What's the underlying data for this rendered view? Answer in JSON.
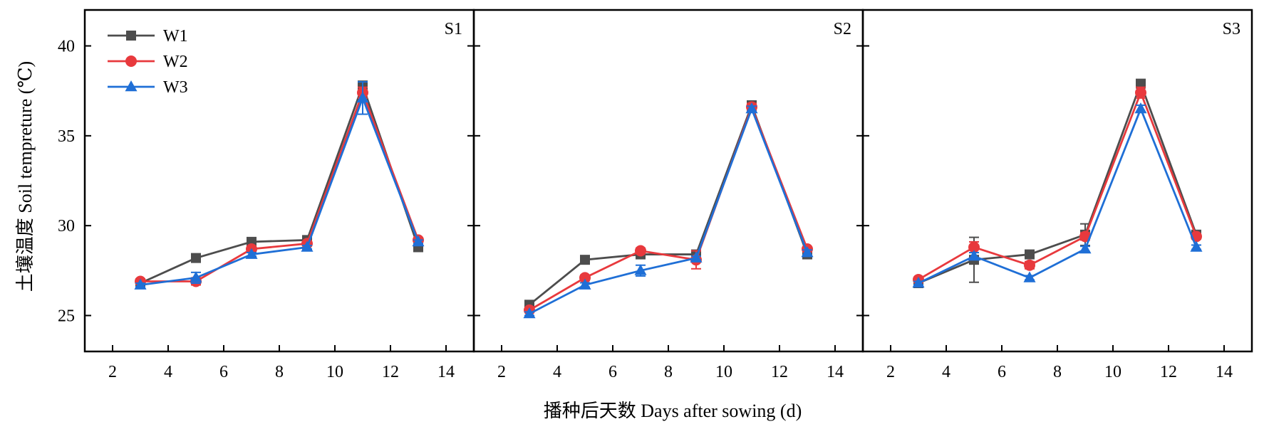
{
  "chart_data": {
    "type": "line",
    "xlabel": "播种后天数 Days after sowing (d)",
    "ylabel": "土壤温度 Soil tempreture (℃)",
    "xlim": [
      1,
      15
    ],
    "ylim": [
      23,
      42
    ],
    "x_ticks": [
      2,
      4,
      6,
      8,
      10,
      12,
      14
    ],
    "y_ticks": [
      25,
      30,
      35,
      40
    ],
    "grid": false,
    "legend": {
      "placement": "top-left",
      "panel": "S1"
    },
    "x": [
      3,
      5,
      7,
      9,
      11,
      13
    ],
    "series_styles": [
      {
        "name": "W1",
        "color": "#4d4d4d",
        "marker": "square"
      },
      {
        "name": "W2",
        "color": "#e8393d",
        "marker": "circle"
      },
      {
        "name": "W3",
        "color": "#1f6fd6",
        "marker": "triangle"
      }
    ],
    "panels": [
      {
        "label": "S1",
        "series": [
          {
            "name": "W1",
            "values": [
              26.8,
              28.2,
              29.1,
              29.2,
              37.8,
              28.8
            ],
            "errors": [
              0.1,
              0.15,
              0.12,
              0.1,
              0.2,
              0.15
            ]
          },
          {
            "name": "W2",
            "values": [
              26.9,
              26.9,
              28.7,
              29.0,
              37.4,
              29.2
            ],
            "errors": [
              0.12,
              0.2,
              0.15,
              0.1,
              0.3,
              0.12
            ]
          },
          {
            "name": "W3",
            "values": [
              26.7,
              27.1,
              28.4,
              28.8,
              37.1,
              29.1
            ],
            "errors": [
              0.1,
              0.3,
              0.1,
              0.1,
              0.9,
              0.1
            ]
          }
        ]
      },
      {
        "label": "S2",
        "series": [
          {
            "name": "W1",
            "values": [
              25.6,
              28.1,
              28.4,
              28.4,
              36.7,
              28.4
            ],
            "errors": [
              0.12,
              0.12,
              0.2,
              0.15,
              0.2,
              0.2
            ]
          },
          {
            "name": "W2",
            "values": [
              25.3,
              27.1,
              28.6,
              28.1,
              36.6,
              28.7
            ],
            "errors": [
              0.1,
              0.15,
              0.15,
              0.5,
              0.2,
              0.1
            ]
          },
          {
            "name": "W3",
            "values": [
              25.1,
              26.7,
              27.5,
              28.2,
              36.5,
              28.5
            ],
            "errors": [
              0.1,
              0.12,
              0.3,
              0.1,
              0.15,
              0.15
            ]
          }
        ]
      },
      {
        "label": "S3",
        "series": [
          {
            "name": "W1",
            "values": [
              26.8,
              28.1,
              28.4,
              29.5,
              37.9,
              29.5
            ],
            "errors": [
              0.1,
              1.25,
              0.12,
              0.6,
              0.2,
              0.1
            ]
          },
          {
            "name": "W2",
            "values": [
              27.0,
              28.8,
              27.8,
              29.4,
              37.4,
              29.4
            ],
            "errors": [
              0.12,
              0.3,
              0.2,
              0.2,
              0.3,
              0.12
            ]
          },
          {
            "name": "W3",
            "values": [
              26.8,
              28.3,
              27.1,
              28.7,
              36.5,
              28.8
            ],
            "errors": [
              0.1,
              0.2,
              0.12,
              0.15,
              0.2,
              0.12
            ]
          }
        ]
      }
    ]
  }
}
